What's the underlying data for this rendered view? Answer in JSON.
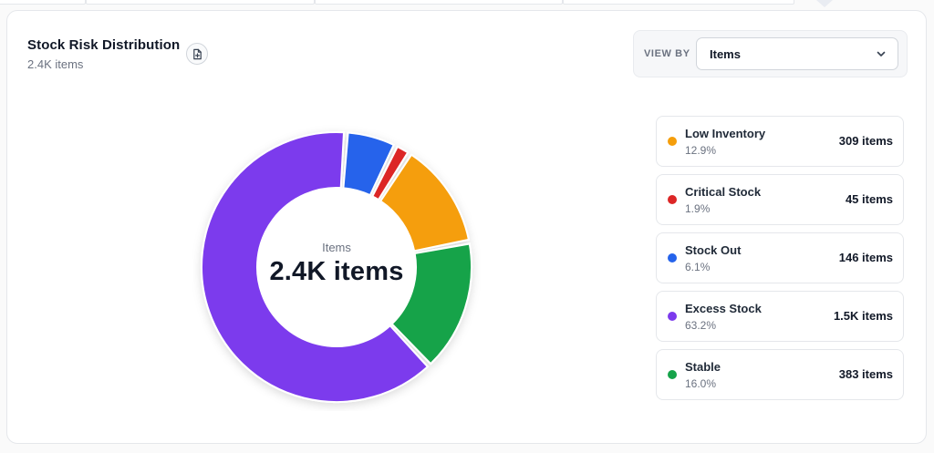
{
  "card": {
    "title": "Stock Risk Distribution",
    "subtitle": "2.4K items"
  },
  "view_by": {
    "label": "VIEW BY",
    "selected": "Items"
  },
  "icons": {
    "export": "file-plus-icon",
    "dropdown": "chevron-down-icon"
  },
  "donut_center": {
    "label": "Items",
    "value": "2.4K items"
  },
  "chart_data": {
    "type": "pie",
    "title": "Stock Risk Distribution",
    "subtitle": "2.4K items",
    "center_label": "Items",
    "center_value": "2.4K items",
    "slices": [
      {
        "name": "Low Inventory",
        "percent": 12.9,
        "count_label": "309 items",
        "value": 309,
        "color": "#f59e0b"
      },
      {
        "name": "Critical Stock",
        "percent": 1.9,
        "count_label": "45 items",
        "value": 45,
        "color": "#dc2626"
      },
      {
        "name": "Stock Out",
        "percent": 6.1,
        "count_label": "146 items",
        "value": 146,
        "color": "#2563eb"
      },
      {
        "name": "Excess Stock",
        "percent": 63.2,
        "count_label": "1.5K items",
        "value": 1500,
        "color": "#7c3aed"
      },
      {
        "name": "Stable",
        "percent": 16.0,
        "count_label": "383 items",
        "value": 383,
        "color": "#16a34a"
      }
    ],
    "legend_placement": "right"
  }
}
